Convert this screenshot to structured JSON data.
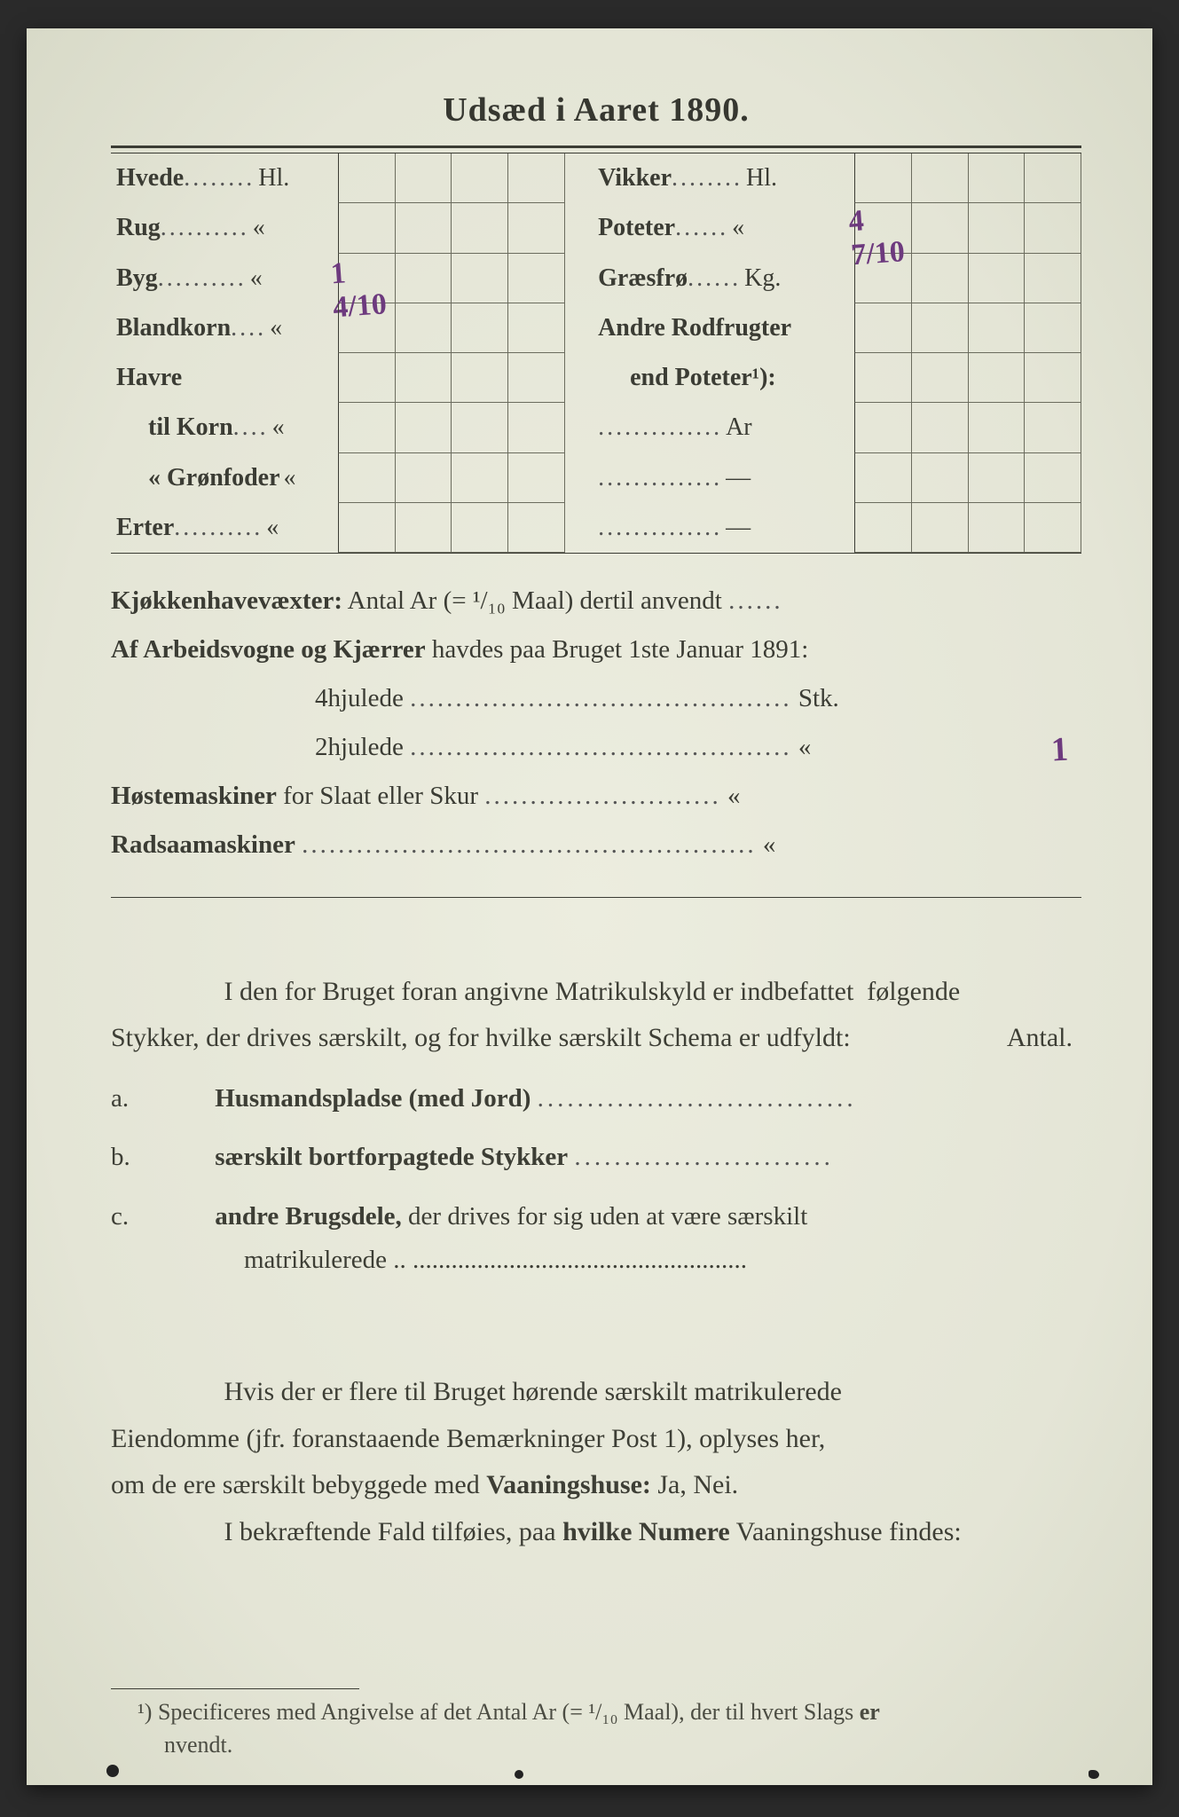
{
  "title": "Udsæd i Aaret 1890.",
  "left_rows": [
    {
      "label": "Hvede",
      "dots": "........",
      "unit": "Hl."
    },
    {
      "label": "Rug",
      "dots": "..........",
      "unit": "«"
    },
    {
      "label": "Byg",
      "dots": "..........",
      "unit": "«"
    },
    {
      "label": "Blandkorn",
      "dots": "....",
      "unit": "«"
    },
    {
      "label": "Havre",
      "dots": "",
      "unit": ""
    },
    {
      "label": "  til Korn",
      "dots": "....",
      "unit": "«"
    },
    {
      "label": "  « Grønfoder",
      "dots": "",
      "unit": "«"
    },
    {
      "label": "Erter",
      "dots": "..........",
      "unit": "«"
    }
  ],
  "right_rows": [
    {
      "label": "Vikker",
      "dots": "........",
      "unit": "Hl."
    },
    {
      "label": "Poteter",
      "dots": "......",
      "unit": "«"
    },
    {
      "label": "Græsfrø",
      "dots": "......",
      "unit": "Kg."
    },
    {
      "label": "Andre Rodfrugter",
      "dots": "",
      "unit": ""
    },
    {
      "label": "  end Poteter¹):",
      "dots": "",
      "unit": ""
    },
    {
      "label": "",
      "dots": "..............",
      "unit": "Ar"
    },
    {
      "label": "",
      "dots": "..............",
      "unit": "—"
    },
    {
      "label": "",
      "dots": "..............",
      "unit": "—"
    }
  ],
  "handwritten": {
    "byg": "1 4/10",
    "poteter": "4 7/10",
    "tohjulede": "1"
  },
  "mid": {
    "kjokken_label": "Kjøkkenhavevæxter:",
    "kjokken_text": "Antal Ar (= ¹/₁₀ Maal) dertil anvendt",
    "kjokken_dots": "......",
    "vogner_label": "Af Arbeidsvogne og Kjærrer",
    "vogner_text": "havdes paa Bruget 1ste Januar 1891:",
    "firehjul_label": "4hjulede",
    "firehjul_dots": "..........................................",
    "firehjul_unit": "Stk.",
    "tohjul_label": "2hjulede",
    "tohjul_dots": "..........................................",
    "tohjul_unit": "«",
    "hoste_label": "Høstemaskiner",
    "hoste_text": "for Slaat eller Skur",
    "hoste_dots": "..........................",
    "hoste_unit": "«",
    "radsa_label": "Radsaamaskiner",
    "radsa_dots": "..................................................",
    "radsa_unit": "«"
  },
  "para1": {
    "line1a": "I den for Bruget foran angivne Matrikulskyld er indbefattet",
    "line1b": "følgende",
    "line2": "Stykker, der drives særskilt, og for hvilke særskilt Schema er udfyldt:",
    "right_note": "Antal."
  },
  "list": {
    "a_letter": "a.",
    "a_bold": "Husmandspladse (med Jord)",
    "a_dots": "................................",
    "b_letter": "b.",
    "b_bold": "særskilt bortforpagtede Stykker",
    "b_dots": "..........................",
    "c_letter": "c.",
    "c_bold": "andre Brugsdele,",
    "c_rest": "der drives for sig uden at være særskilt",
    "c_line2": "matrikulerede",
    "c_dots": "..   ...................................................."
  },
  "para2": {
    "line1": "Hvis der er flere til Bruget hørende særskilt matrikulerede",
    "line2": "Eiendomme (jfr. foranstaaende Bemærkninger Post 1), oplyses her,",
    "line3a": "om de ere særskilt bebyggede med ",
    "line3b": "Vaaningshuse:",
    "line3c": " Ja, Nei.",
    "line4a": "I bekræftende Fald tilføies, paa ",
    "line4b": "hvilke Numere",
    "line4c": " Vaaningshuse findes:"
  },
  "footnote": {
    "marker": "¹)",
    "text1": "Specificeres med Angivelse af det Antal Ar (= ¹/₁₀ Maal), der til hvert Slags ",
    "bold": "er",
    "text2": "nvendt."
  },
  "colors": {
    "paper": "#e8e9dc",
    "text": "#3b3c34",
    "handwriting": "#6d3a7e",
    "gridline": "#6b6c5e",
    "dots": "#555555",
    "page_shadow": "#2a2a2a"
  }
}
